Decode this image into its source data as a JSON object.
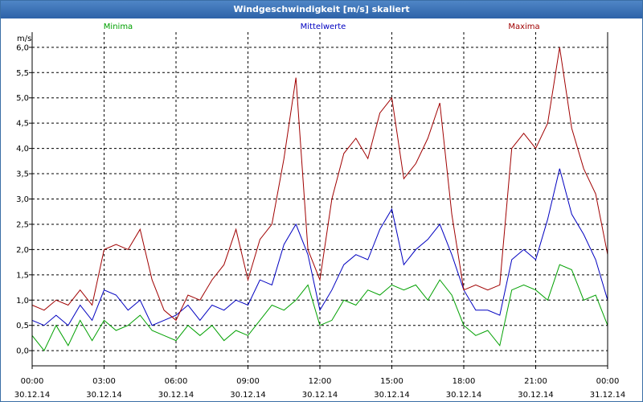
{
  "window": {
    "title": "Windgeschwindigkeit [m/s] skaliert"
  },
  "chart_data": {
    "type": "line",
    "title": "Windgeschwindigkeit [m/s] skaliert",
    "ylabel": "m/s",
    "ylim": [
      -0.3,
      6.3
    ],
    "xlim": [
      0,
      24
    ],
    "grid": true,
    "yticks": [
      0.0,
      0.5,
      1.0,
      1.5,
      2.0,
      2.5,
      3.0,
      3.5,
      4.0,
      4.5,
      5.0,
      5.5,
      6.0
    ],
    "ytick_labels": [
      "0,0",
      "0,5",
      "1,0",
      "1,5",
      "2,0",
      "2,5",
      "3,0",
      "3,5",
      "4,0",
      "4,5",
      "5,0",
      "5,5",
      "6,0"
    ],
    "xticks": [
      {
        "x": 0,
        "time": "00:00",
        "date": "30.12.14"
      },
      {
        "x": 3,
        "time": "03:00",
        "date": "30.12.14"
      },
      {
        "x": 6,
        "time": "06:00",
        "date": "30.12.14"
      },
      {
        "x": 9,
        "time": "09:00",
        "date": "30.12.14"
      },
      {
        "x": 12,
        "time": "12:00",
        "date": "30.12.14"
      },
      {
        "x": 15,
        "time": "15:00",
        "date": "30.12.14"
      },
      {
        "x": 18,
        "time": "18:00",
        "date": "30.12.14"
      },
      {
        "x": 21,
        "time": "21:00",
        "date": "30.12.14"
      },
      {
        "x": 24,
        "time": "00:00",
        "date": "31.12.14"
      }
    ],
    "x": [
      0,
      0.5,
      1,
      1.5,
      2,
      2.5,
      3,
      3.5,
      4,
      4.5,
      5,
      5.5,
      6,
      6.5,
      7,
      7.5,
      8,
      8.5,
      9,
      9.5,
      10,
      10.5,
      11,
      11.5,
      12,
      12.5,
      13,
      13.5,
      14,
      14.5,
      15,
      15.5,
      16,
      16.5,
      17,
      17.5,
      18,
      18.5,
      19,
      19.5,
      20,
      20.5,
      21,
      21.5,
      22,
      22.5,
      23,
      23.5,
      24
    ],
    "series": [
      {
        "name": "Minima",
        "color": "#00a000",
        "values": [
          0.3,
          0.0,
          0.5,
          0.1,
          0.6,
          0.2,
          0.6,
          0.4,
          0.5,
          0.7,
          0.4,
          0.3,
          0.2,
          0.5,
          0.3,
          0.5,
          0.2,
          0.4,
          0.3,
          0.6,
          0.9,
          0.8,
          1.0,
          1.3,
          0.5,
          0.6,
          1.0,
          0.9,
          1.2,
          1.1,
          1.3,
          1.2,
          1.3,
          1.0,
          1.4,
          1.1,
          0.5,
          0.3,
          0.4,
          0.1,
          1.2,
          1.3,
          1.2,
          1.0,
          1.7,
          1.6,
          1.0,
          1.1,
          0.5
        ]
      },
      {
        "name": "Mittelwerte",
        "color": "#0000c0",
        "values": [
          0.6,
          0.5,
          0.7,
          0.5,
          0.9,
          0.6,
          1.2,
          1.1,
          0.8,
          1.0,
          0.5,
          0.6,
          0.7,
          0.9,
          0.6,
          0.9,
          0.8,
          1.0,
          0.9,
          1.4,
          1.3,
          2.1,
          2.5,
          1.9,
          0.8,
          1.2,
          1.7,
          1.9,
          1.8,
          2.4,
          2.8,
          1.7,
          2.0,
          2.2,
          2.5,
          1.9,
          1.2,
          0.8,
          0.8,
          0.7,
          1.8,
          2.0,
          1.8,
          2.6,
          3.6,
          2.7,
          2.3,
          1.8,
          1.0
        ]
      },
      {
        "name": "Maxima",
        "color": "#a00000",
        "values": [
          0.9,
          0.8,
          1.0,
          0.9,
          1.2,
          0.9,
          2.0,
          2.1,
          2.0,
          2.4,
          1.4,
          0.8,
          0.6,
          1.1,
          1.0,
          1.4,
          1.7,
          2.4,
          1.4,
          2.2,
          2.5,
          3.8,
          5.4,
          2.0,
          1.4,
          3.0,
          3.9,
          4.2,
          3.8,
          4.7,
          5.0,
          3.4,
          3.7,
          4.2,
          4.9,
          2.7,
          1.2,
          1.3,
          1.2,
          1.3,
          4.0,
          4.3,
          4.0,
          4.5,
          6.0,
          4.4,
          3.6,
          3.1,
          1.9
        ]
      }
    ]
  }
}
